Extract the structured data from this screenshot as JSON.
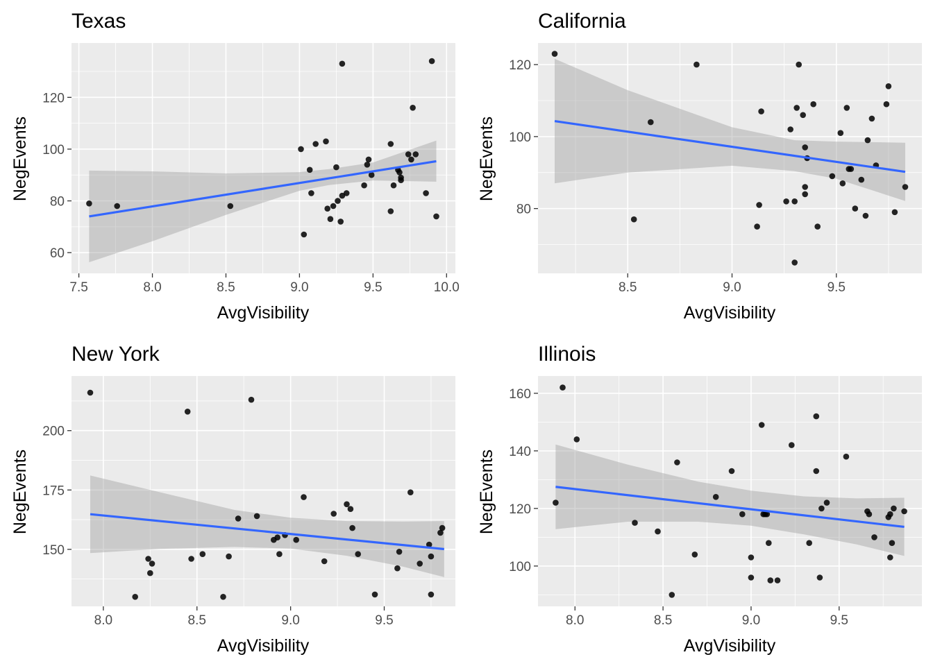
{
  "chart_data": [
    {
      "type": "scatter",
      "title": "Texas",
      "xlabel": "AvgVisibility",
      "ylabel": "NegEvents",
      "xlim": [
        7.45,
        10.06
      ],
      "ylim": [
        52,
        141
      ],
      "xticks": [
        7.5,
        8.0,
        8.5,
        9.0,
        9.5,
        10.0
      ],
      "xtick_labels": [
        "7.5",
        "8.0",
        "8.5",
        "9.0",
        "9.5",
        "10.0"
      ],
      "yticks": [
        60,
        80,
        100,
        120
      ],
      "ytick_labels": [
        "60",
        "80",
        "100",
        "120"
      ],
      "grid": true,
      "points": [
        [
          7.57,
          79
        ],
        [
          7.76,
          78
        ],
        [
          8.53,
          78
        ],
        [
          9.01,
          100
        ],
        [
          9.03,
          67
        ],
        [
          9.07,
          92
        ],
        [
          9.08,
          83
        ],
        [
          9.11,
          102
        ],
        [
          9.18,
          103
        ],
        [
          9.19,
          77
        ],
        [
          9.21,
          73
        ],
        [
          9.23,
          78
        ],
        [
          9.25,
          93
        ],
        [
          9.26,
          80
        ],
        [
          9.28,
          72
        ],
        [
          9.29,
          133
        ],
        [
          9.29,
          82
        ],
        [
          9.32,
          83
        ],
        [
          9.44,
          86
        ],
        [
          9.46,
          94
        ],
        [
          9.47,
          96
        ],
        [
          9.49,
          90
        ],
        [
          9.62,
          102
        ],
        [
          9.62,
          76
        ],
        [
          9.64,
          86
        ],
        [
          9.67,
          92
        ],
        [
          9.68,
          91
        ],
        [
          9.69,
          89
        ],
        [
          9.69,
          88
        ],
        [
          9.74,
          98
        ],
        [
          9.76,
          96
        ],
        [
          9.77,
          116
        ],
        [
          9.79,
          98
        ],
        [
          9.86,
          83
        ],
        [
          9.9,
          134
        ],
        [
          9.93,
          74
        ]
      ],
      "fit": {
        "x": [
          7.57,
          9.93
        ],
        "y": [
          74.0,
          95.3
        ]
      },
      "ribbon": {
        "x": [
          7.57,
          8.0,
          8.5,
          9.0,
          9.2,
          9.5,
          9.93
        ],
        "upper": [
          91.7,
          91.4,
          90.6,
          91.1,
          92.3,
          94.8,
          103.3
        ],
        "lower": [
          56.3,
          64.4,
          74.6,
          83.9,
          86.1,
          87.9,
          87.4
        ]
      }
    },
    {
      "type": "scatter",
      "title": "California",
      "xlabel": "AvgVisibility",
      "ylabel": "NegEvents",
      "xlim": [
        8.07,
        9.91
      ],
      "ylim": [
        62,
        126
      ],
      "xticks": [
        8.5,
        9.0,
        9.5
      ],
      "xtick_labels": [
        "8.5",
        "9.0",
        "9.5"
      ],
      "yticks": [
        80,
        100,
        120
      ],
      "ytick_labels": [
        "80",
        "100",
        "120"
      ],
      "grid": true,
      "points": [
        [
          8.15,
          123
        ],
        [
          8.53,
          77
        ],
        [
          8.61,
          104
        ],
        [
          8.83,
          120
        ],
        [
          9.12,
          75
        ],
        [
          9.13,
          81
        ],
        [
          9.14,
          107
        ],
        [
          9.26,
          82
        ],
        [
          9.28,
          102
        ],
        [
          9.3,
          65
        ],
        [
          9.3,
          82
        ],
        [
          9.31,
          108
        ],
        [
          9.32,
          120
        ],
        [
          9.34,
          106
        ],
        [
          9.35,
          97
        ],
        [
          9.35,
          86
        ],
        [
          9.35,
          84
        ],
        [
          9.36,
          94
        ],
        [
          9.39,
          109
        ],
        [
          9.41,
          75
        ],
        [
          9.48,
          89
        ],
        [
          9.52,
          101
        ],
        [
          9.53,
          87
        ],
        [
          9.55,
          108
        ],
        [
          9.56,
          91
        ],
        [
          9.57,
          91
        ],
        [
          9.59,
          80
        ],
        [
          9.62,
          88
        ],
        [
          9.64,
          78
        ],
        [
          9.65,
          99
        ],
        [
          9.67,
          105
        ],
        [
          9.69,
          92
        ],
        [
          9.74,
          109
        ],
        [
          9.75,
          114
        ],
        [
          9.78,
          79
        ],
        [
          9.83,
          86
        ]
      ],
      "fit": {
        "x": [
          8.15,
          9.83
        ],
        "y": [
          104.3,
          90.2
        ]
      },
      "ribbon": {
        "x": [
          8.15,
          8.5,
          9.0,
          9.3,
          9.5,
          9.83
        ],
        "upper": [
          121.6,
          112.9,
          102.6,
          99.0,
          98.6,
          98.3
        ],
        "lower": [
          87.0,
          90.0,
          91.9,
          90.4,
          88.3,
          82.1
        ]
      }
    },
    {
      "type": "scatter",
      "title": "New York",
      "xlabel": "AvgVisibility",
      "ylabel": "NegEvents",
      "xlim": [
        7.83,
        9.88
      ],
      "ylim": [
        126,
        223
      ],
      "xticks": [
        8.0,
        8.5,
        9.0,
        9.5
      ],
      "xtick_labels": [
        "8.0",
        "8.5",
        "9.0",
        "9.5"
      ],
      "yticks": [
        150,
        175,
        200
      ],
      "ytick_labels": [
        "150",
        "175",
        "200"
      ],
      "grid": true,
      "points": [
        [
          7.93,
          216
        ],
        [
          8.17,
          130
        ],
        [
          8.24,
          146
        ],
        [
          8.25,
          140
        ],
        [
          8.26,
          144
        ],
        [
          8.45,
          208
        ],
        [
          8.47,
          146
        ],
        [
          8.53,
          148
        ],
        [
          8.64,
          130
        ],
        [
          8.67,
          147
        ],
        [
          8.72,
          163
        ],
        [
          8.79,
          213
        ],
        [
          8.82,
          164
        ],
        [
          8.91,
          154
        ],
        [
          8.93,
          155
        ],
        [
          8.94,
          148
        ],
        [
          8.97,
          156
        ],
        [
          9.03,
          154
        ],
        [
          9.07,
          172
        ],
        [
          9.18,
          145
        ],
        [
          9.23,
          165
        ],
        [
          9.3,
          169
        ],
        [
          9.32,
          167
        ],
        [
          9.33,
          159
        ],
        [
          9.36,
          148
        ],
        [
          9.45,
          131
        ],
        [
          9.57,
          142
        ],
        [
          9.58,
          149
        ],
        [
          9.64,
          174
        ],
        [
          9.69,
          144
        ],
        [
          9.74,
          152
        ],
        [
          9.75,
          131
        ],
        [
          9.75,
          147
        ],
        [
          9.8,
          157
        ],
        [
          9.81,
          159
        ]
      ],
      "fit": {
        "x": [
          7.93,
          9.82
        ],
        "y": [
          164.8,
          150.1
        ]
      },
      "ribbon": {
        "x": [
          7.93,
          8.3,
          8.7,
          9.0,
          9.3,
          9.6,
          9.82
        ],
        "upper": [
          181.1,
          174.1,
          166.6,
          163.3,
          161.9,
          161.7,
          161.9
        ],
        "lower": [
          148.4,
          150.2,
          151.0,
          150.3,
          147.3,
          142.7,
          138.3
        ]
      }
    },
    {
      "type": "scatter",
      "title": "Illinois",
      "xlabel": "AvgVisibility",
      "ylabel": "NegEvents",
      "xlim": [
        7.79,
        9.97
      ],
      "ylim": [
        86,
        166
      ],
      "xticks": [
        8.0,
        8.5,
        9.0,
        9.5
      ],
      "xtick_labels": [
        "8.0",
        "8.5",
        "9.0",
        "9.5"
      ],
      "yticks": [
        100,
        120,
        140,
        160
      ],
      "ytick_labels": [
        "100",
        "120",
        "140",
        "160"
      ],
      "grid": true,
      "points": [
        [
          7.89,
          122
        ],
        [
          7.93,
          162
        ],
        [
          8.01,
          144
        ],
        [
          8.34,
          115
        ],
        [
          8.47,
          112
        ],
        [
          8.55,
          90
        ],
        [
          8.58,
          136
        ],
        [
          8.68,
          104
        ],
        [
          8.8,
          124
        ],
        [
          8.89,
          133
        ],
        [
          8.95,
          118
        ],
        [
          9.0,
          103
        ],
        [
          9.0,
          96
        ],
        [
          9.06,
          149
        ],
        [
          9.07,
          118
        ],
        [
          9.08,
          118
        ],
        [
          9.09,
          118
        ],
        [
          9.1,
          108
        ],
        [
          9.11,
          95
        ],
        [
          9.15,
          95
        ],
        [
          9.23,
          142
        ],
        [
          9.33,
          108
        ],
        [
          9.37,
          133
        ],
        [
          9.37,
          152
        ],
        [
          9.39,
          96
        ],
        [
          9.4,
          120
        ],
        [
          9.43,
          122
        ],
        [
          9.54,
          138
        ],
        [
          9.66,
          119
        ],
        [
          9.67,
          118
        ],
        [
          9.7,
          110
        ],
        [
          9.78,
          117
        ],
        [
          9.79,
          118
        ],
        [
          9.79,
          103
        ],
        [
          9.8,
          108
        ],
        [
          9.81,
          120
        ],
        [
          9.87,
          119
        ]
      ],
      "fit": {
        "x": [
          7.89,
          9.87
        ],
        "y": [
          127.5,
          113.6
        ]
      },
      "ribbon": {
        "x": [
          7.89,
          8.3,
          8.7,
          9.0,
          9.3,
          9.6,
          9.87
        ],
        "upper": [
          142.2,
          135.2,
          129.3,
          126.2,
          124.2,
          123.5,
          123.7
        ],
        "lower": [
          112.8,
          115.4,
          115.4,
          114.0,
          111.0,
          107.5,
          103.5
        ]
      }
    }
  ]
}
